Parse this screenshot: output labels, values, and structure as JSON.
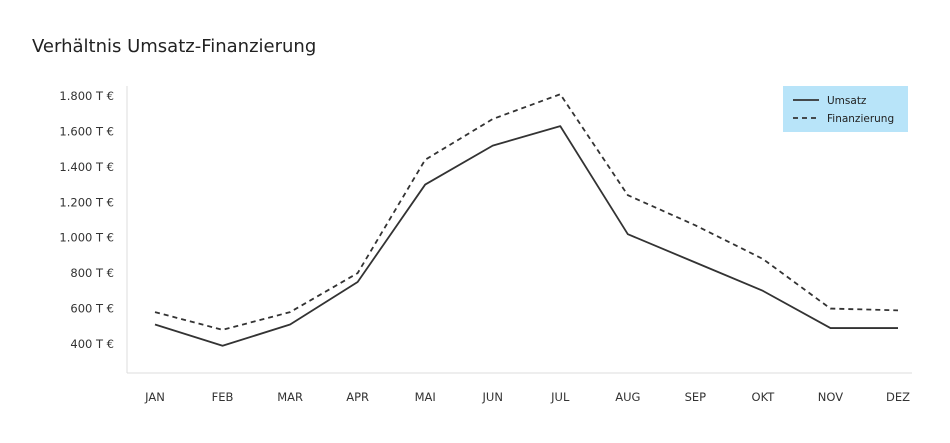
{
  "chart_data": {
    "type": "line",
    "title": "Verhältnis Umsatz-Finanzierung",
    "xlabel": "",
    "ylabel": "",
    "categories": [
      "JAN",
      "FEB",
      "MAR",
      "APR",
      "MAI",
      "JUN",
      "JUL",
      "AUG",
      "SEP",
      "OKT",
      "NOV",
      "DEZ"
    ],
    "ylim": [
      300,
      1800
    ],
    "yticks": [
      400,
      600,
      800,
      1000,
      1200,
      1400,
      1600,
      1800
    ],
    "ytick_labels": [
      "400 T €",
      "600 T €",
      "800 T €",
      "1.000 T €",
      "1.200 T €",
      "1.400 T €",
      "1.600 T €",
      "1.800 T €"
    ],
    "grid": false,
    "legend_position": "top-right",
    "legend_background": "#b8e4f9",
    "series": [
      {
        "name": "Umsatz",
        "dash": "solid",
        "color": "#333333",
        "values": [
          510,
          390,
          510,
          750,
          1300,
          1520,
          1630,
          1020,
          860,
          700,
          490,
          490
        ]
      },
      {
        "name": "Finanzierung",
        "dash": "dashed",
        "color": "#333333",
        "values": [
          580,
          480,
          580,
          800,
          1440,
          1670,
          1810,
          1240,
          1070,
          880,
          600,
          590
        ]
      }
    ]
  }
}
